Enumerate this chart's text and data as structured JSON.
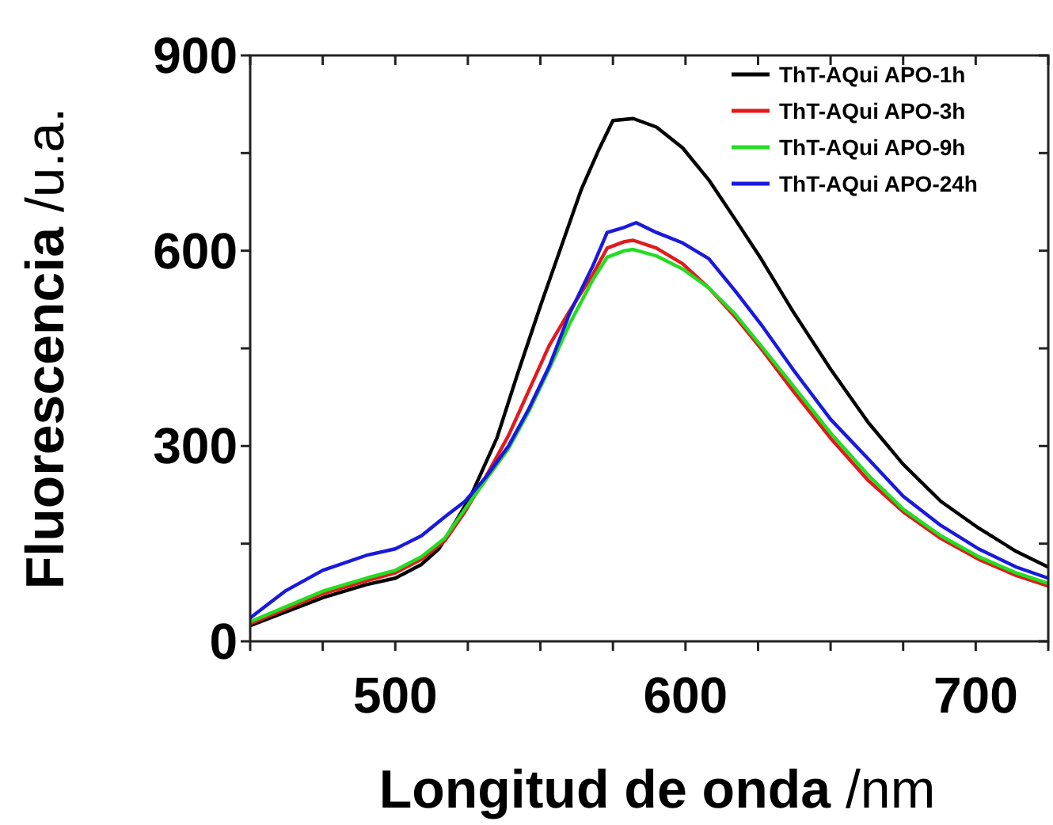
{
  "chart_data": {
    "type": "line",
    "xlabel": "Longitud de onda /nm",
    "ylabel": "Fluorescencia /u.a.",
    "xlim": [
      450,
      725
    ],
    "ylim": [
      0,
      900
    ],
    "xticks": [
      {
        "value": 450,
        "label": null
      },
      {
        "value": 475,
        "label": null
      },
      500,
      {
        "value": 525,
        "label": null
      },
      {
        "value": 550,
        "label": null
      },
      {
        "value": 575,
        "label": null
      },
      600,
      {
        "value": 625,
        "label": null
      },
      {
        "value": 650,
        "label": null
      },
      {
        "value": 675,
        "label": null
      },
      700,
      {
        "value": 725,
        "label": null
      }
    ],
    "yticks": [
      0,
      {
        "value": 150,
        "label": null
      },
      300,
      {
        "value": 450,
        "label": null
      },
      600,
      {
        "value": 750,
        "label": null
      },
      900
    ],
    "legend": "top right",
    "grid": false,
    "marker": "none",
    "line_style": "solid",
    "series": [
      {
        "name": "ThT-AQui APO-1h",
        "color": "#000000",
        "x": [
          450,
          475,
          490,
          500,
          509,
          515,
          520,
          526,
          535,
          542,
          550,
          557,
          564,
          570,
          575,
          582,
          590,
          599,
          608,
          617,
          626,
          637,
          650,
          663,
          675,
          688,
          701,
          714,
          725
        ],
        "values": [
          24,
          67,
          87,
          97,
          118,
          142,
          178,
          223,
          312,
          409,
          515,
          604,
          693,
          754,
          800,
          803,
          790,
          758,
          709,
          649,
          588,
          507,
          418,
          336,
          272,
          215,
          174,
          138,
          114
        ]
      },
      {
        "name": "ThT-AQui APO-3h",
        "color": "#e31a1c",
        "x": [
          450,
          475,
          490,
          500,
          509,
          517,
          524,
          531,
          539,
          546,
          553,
          560,
          568,
          573,
          579,
          582,
          590,
          599,
          608,
          617,
          626,
          637,
          650,
          663,
          675,
          688,
          701,
          714,
          725
        ],
        "values": [
          27,
          73,
          93,
          105,
          126,
          154,
          199,
          251,
          316,
          385,
          454,
          507,
          563,
          604,
          614,
          616,
          604,
          580,
          543,
          499,
          450,
          385,
          312,
          247,
          199,
          158,
          126,
          101,
          85
        ]
      },
      {
        "name": "ThT-AQui APO-9h",
        "color": "#22dd22",
        "x": [
          450,
          475,
          490,
          500,
          509,
          517,
          524,
          531,
          539,
          546,
          553,
          560,
          568,
          573,
          579,
          582,
          590,
          599,
          608,
          617,
          626,
          637,
          650,
          663,
          675,
          688,
          701,
          714,
          725
        ],
        "values": [
          30,
          77,
          97,
          109,
          130,
          158,
          203,
          247,
          296,
          353,
          418,
          487,
          555,
          590,
          600,
          602,
          592,
          572,
          543,
          503,
          454,
          393,
          320,
          255,
          203,
          162,
          130,
          105,
          89
        ]
      },
      {
        "name": "ThT-AQui APO-24h",
        "color": "#1a1adc",
        "x": [
          450,
          462,
          475,
          490,
          500,
          509,
          517,
          524,
          531,
          539,
          546,
          553,
          560,
          568,
          573,
          579,
          583,
          590,
          599,
          608,
          617,
          626,
          637,
          650,
          663,
          675,
          688,
          701,
          714,
          725
        ],
        "values": [
          36,
          77,
          109,
          132,
          142,
          162,
          191,
          215,
          251,
          300,
          357,
          422,
          503,
          576,
          628,
          636,
          643,
          628,
          612,
          588,
          539,
          487,
          418,
          341,
          280,
          223,
          178,
          142,
          114,
          97
        ]
      }
    ]
  }
}
